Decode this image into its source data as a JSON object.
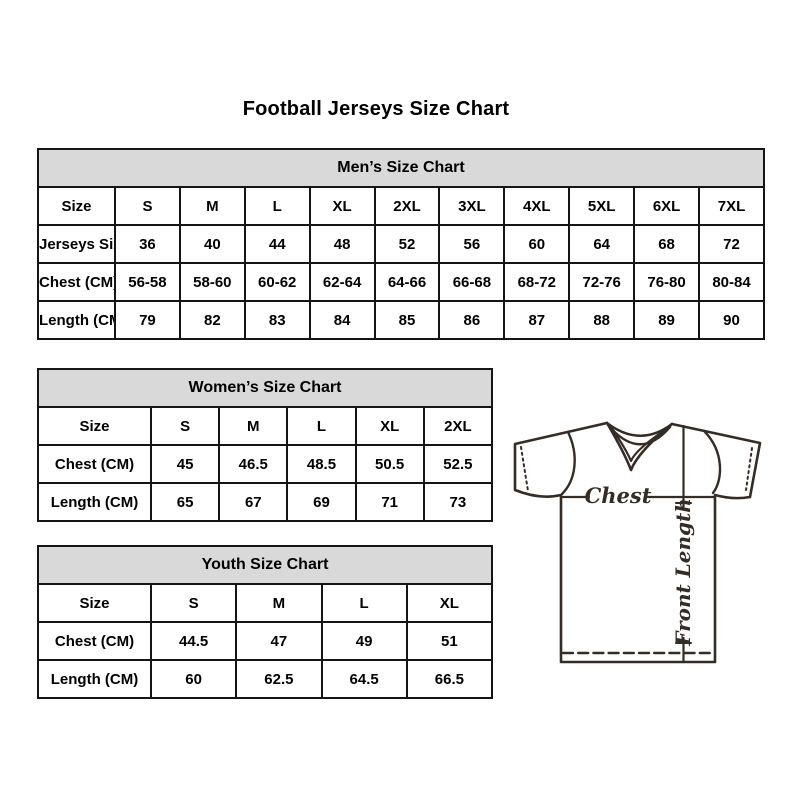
{
  "page": {
    "title": "Football Jerseys Size Chart"
  },
  "colors": {
    "header_bg": "#d9d9d9",
    "table_border": "#151515",
    "text": "#000000",
    "jersey_line": "#362c26"
  },
  "tables": [
    {
      "id": "mens",
      "header": "Men’s Size Chart",
      "rows": [
        {
          "label": "Size",
          "values": [
            "S",
            "M",
            "L",
            "XL",
            "2XL",
            "3XL",
            "4XL",
            "5XL",
            "6XL",
            "7XL"
          ]
        },
        {
          "label": "Jerseys Size",
          "values": [
            "36",
            "40",
            "44",
            "48",
            "52",
            "56",
            "60",
            "64",
            "68",
            "72"
          ]
        },
        {
          "label": "Chest (CM)",
          "values": [
            "56-58",
            "58-60",
            "60-62",
            "62-64",
            "64-66",
            "66-68",
            "68-72",
            "72-76",
            "76-80",
            "80-84"
          ]
        },
        {
          "label": "Length (CM)",
          "values": [
            "79",
            "82",
            "83",
            "84",
            "85",
            "86",
            "87",
            "88",
            "89",
            "90"
          ]
        }
      ]
    },
    {
      "id": "womens",
      "header": "Women’s Size Chart",
      "rows": [
        {
          "label": "Size",
          "values": [
            "S",
            "M",
            "L",
            "XL",
            "2XL"
          ]
        },
        {
          "label": "Chest (CM)",
          "values": [
            "45",
            "46.5",
            "48.5",
            "50.5",
            "52.5"
          ]
        },
        {
          "label": "Length (CM)",
          "values": [
            "65",
            "67",
            "69",
            "71",
            "73"
          ]
        }
      ]
    },
    {
      "id": "youth",
      "header": "Youth Size Chart",
      "rows": [
        {
          "label": "Size",
          "values": [
            "S",
            "M",
            "L",
            "XL"
          ]
        },
        {
          "label": "Chest (CM)",
          "values": [
            "44.5",
            "47",
            "49",
            "51"
          ]
        },
        {
          "label": "Length (CM)",
          "values": [
            "60",
            "62.5",
            "64.5",
            "66.5"
          ]
        }
      ]
    }
  ],
  "diagram": {
    "chest_label": "Chest",
    "front_length_label": "Front Length"
  }
}
